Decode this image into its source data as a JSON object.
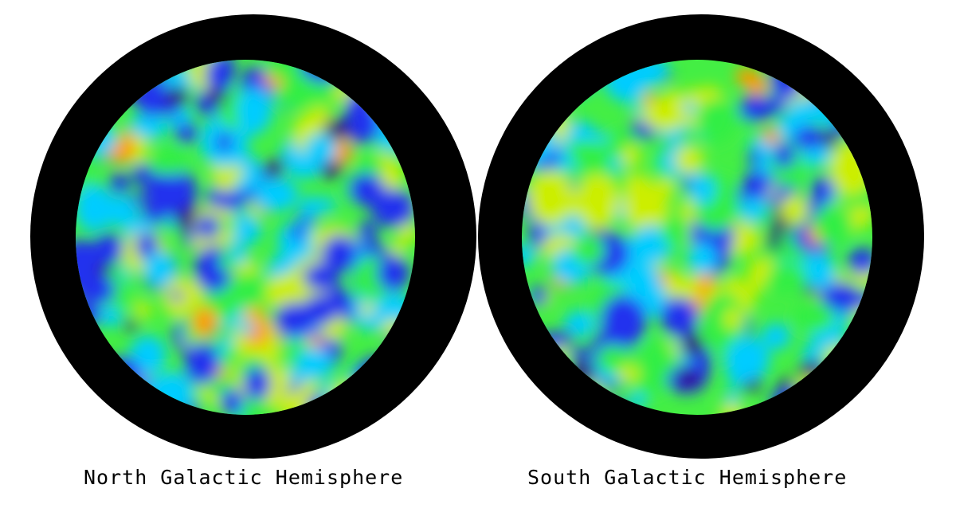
{
  "panels": [
    {
      "label": "North Galactic Hemisphere"
    },
    {
      "label": "South Galactic Hemisphere"
    }
  ],
  "colors": {
    "background": "#ffffff",
    "mask": "#000000",
    "scale": [
      "#330077",
      "#2233ee",
      "#00ccff",
      "#33ee44",
      "#ccee00",
      "#ff9900"
    ]
  }
}
